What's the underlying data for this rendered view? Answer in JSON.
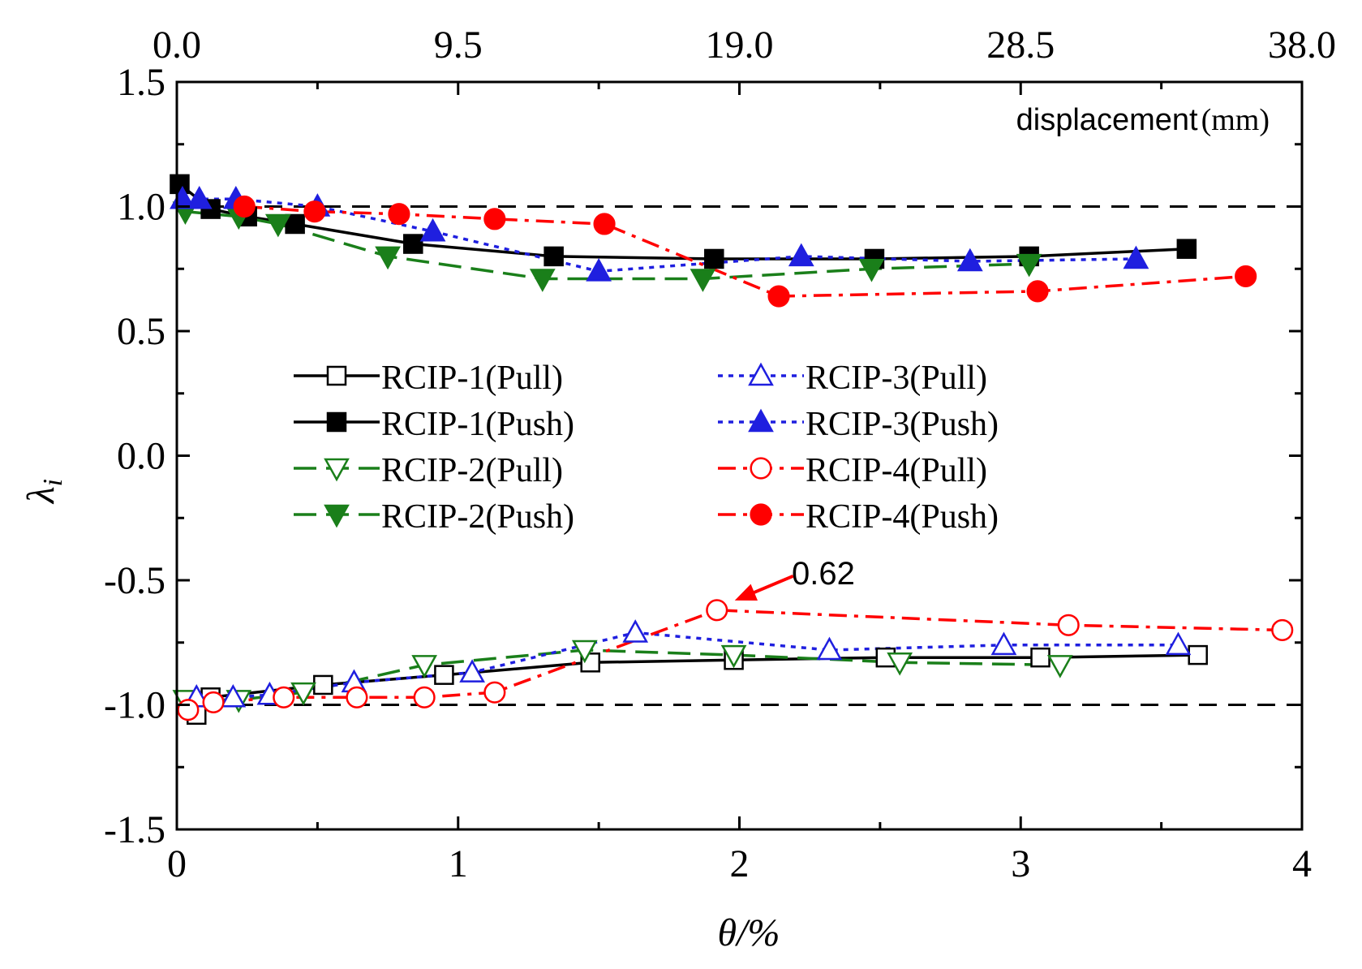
{
  "chart_data": {
    "type": "line",
    "title": "",
    "xlabel": "θ/%",
    "ylabel_main": "λ",
    "ylabel_sub": "i",
    "top_axis_label": "displacement",
    "top_axis_unit": "(mm)",
    "xlim": [
      0,
      4
    ],
    "ylim": [
      -1.5,
      1.5
    ],
    "x_ticks": [
      "0",
      "1",
      "2",
      "3",
      "4"
    ],
    "x_tick_values": [
      0,
      1,
      2,
      3,
      4
    ],
    "y_ticks": [
      "1.5",
      "1.0",
      "0.5",
      "0.0",
      "-0.5",
      "-1.0",
      "-1.5"
    ],
    "y_tick_values": [
      1.5,
      1.0,
      0.5,
      0.0,
      -0.5,
      -1.0,
      -1.5
    ],
    "top_ticks": [
      "0.0",
      "9.5",
      "19.0",
      "28.5",
      "38.0"
    ],
    "top_tick_values": [
      0,
      1,
      2,
      3,
      4
    ],
    "reference_lines": [
      1.0,
      -1.0
    ],
    "annotation": {
      "text": "0.62",
      "x": 1.92,
      "y": -0.62
    },
    "series": [
      {
        "name": "RCIP-1(Pull)",
        "color": "#000000",
        "dash": "solid",
        "marker": "square",
        "filled": false,
        "x": [
          0.07,
          0.12,
          0.52,
          0.95,
          1.47,
          1.98,
          2.52,
          3.07,
          3.63
        ],
        "y": [
          -1.04,
          -0.97,
          -0.92,
          -0.88,
          -0.83,
          -0.82,
          -0.81,
          -0.81,
          -0.8
        ]
      },
      {
        "name": "RCIP-1(Push)",
        "color": "#000000",
        "dash": "solid",
        "marker": "square",
        "filled": true,
        "x": [
          0.01,
          0.12,
          0.25,
          0.42,
          0.84,
          1.34,
          1.91,
          2.48,
          3.03,
          3.59
        ],
        "y": [
          1.09,
          0.99,
          0.96,
          0.93,
          0.85,
          0.8,
          0.79,
          0.79,
          0.8,
          0.83
        ]
      },
      {
        "name": "RCIP-2(Pull)",
        "color": "#1a7f1a",
        "dash": "dash",
        "marker": "triangle-down",
        "filled": false,
        "x": [
          0.03,
          0.22,
          0.45,
          0.88,
          1.45,
          1.98,
          2.57,
          3.14
        ],
        "y": [
          -0.98,
          -0.98,
          -0.95,
          -0.84,
          -0.78,
          -0.8,
          -0.83,
          -0.84
        ]
      },
      {
        "name": "RCIP-2(Push)",
        "color": "#1a7f1a",
        "dash": "dash",
        "marker": "triangle-down",
        "filled": true,
        "x": [
          0.03,
          0.22,
          0.36,
          0.75,
          1.3,
          1.87,
          2.47,
          3.03
        ],
        "y": [
          0.98,
          0.96,
          0.93,
          0.8,
          0.71,
          0.71,
          0.75,
          0.77
        ]
      },
      {
        "name": "RCIP-3(Pull)",
        "color": "#1f1fdf",
        "dash": "dot",
        "marker": "triangle-up",
        "filled": false,
        "x": [
          0.07,
          0.2,
          0.33,
          0.63,
          1.05,
          1.63,
          2.32,
          2.94,
          3.56
        ],
        "y": [
          -0.97,
          -0.97,
          -0.96,
          -0.91,
          -0.87,
          -0.71,
          -0.78,
          -0.76,
          -0.76
        ]
      },
      {
        "name": "RCIP-3(Push)",
        "color": "#1f1fdf",
        "dash": "dot",
        "marker": "triangle-up",
        "filled": true,
        "x": [
          0.02,
          0.08,
          0.21,
          0.5,
          0.91,
          1.5,
          2.22,
          2.82,
          3.41
        ],
        "y": [
          1.03,
          1.03,
          1.03,
          1.0,
          0.9,
          0.74,
          0.8,
          0.78,
          0.79
        ]
      },
      {
        "name": "RCIP-4(Pull)",
        "color": "#ff0000",
        "dash": "dashdot",
        "marker": "circle",
        "filled": false,
        "x": [
          0.04,
          0.13,
          0.38,
          0.64,
          0.88,
          1.13,
          1.92,
          3.17,
          3.93
        ],
        "y": [
          -1.02,
          -0.99,
          -0.97,
          -0.97,
          -0.97,
          -0.95,
          -0.62,
          -0.68,
          -0.7
        ]
      },
      {
        "name": "RCIP-4(Push)",
        "color": "#ff0000",
        "dash": "dashdot",
        "marker": "circle",
        "filled": true,
        "x": [
          0.24,
          0.49,
          0.79,
          1.13,
          1.52,
          2.14,
          3.06,
          3.8
        ],
        "y": [
          1.0,
          0.98,
          0.97,
          0.95,
          0.93,
          0.64,
          0.66,
          0.72
        ]
      }
    ]
  }
}
